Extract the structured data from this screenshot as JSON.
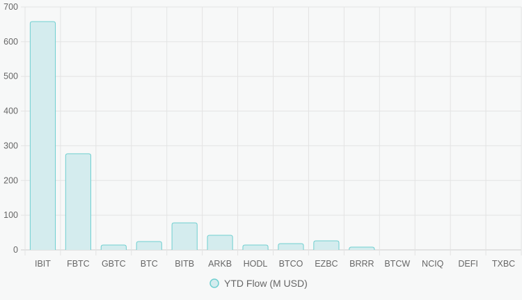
{
  "chart_data": {
    "type": "bar",
    "categories": [
      "IBIT",
      "FBTC",
      "GBTC",
      "BTC",
      "BITB",
      "ARKB",
      "HODL",
      "BTCO",
      "EZBC",
      "BRRR",
      "BTCW",
      "NCIQ",
      "DEFI",
      "TXBC"
    ],
    "series": [
      {
        "name": "YTD Flow (M USD)",
        "values": [
          658,
          277,
          14,
          24,
          78,
          42,
          14,
          18,
          26,
          8,
          0,
          0,
          0,
          0
        ]
      }
    ],
    "ylim": [
      0,
      700
    ],
    "yticks": [
      0,
      100,
      200,
      300,
      400,
      500,
      600,
      700
    ],
    "grid": true,
    "legend": "bottom",
    "colors": {
      "bar_fill": "#d4ecee",
      "bar_border": "#6fcfd0",
      "grid": "#e3e3e3"
    }
  }
}
